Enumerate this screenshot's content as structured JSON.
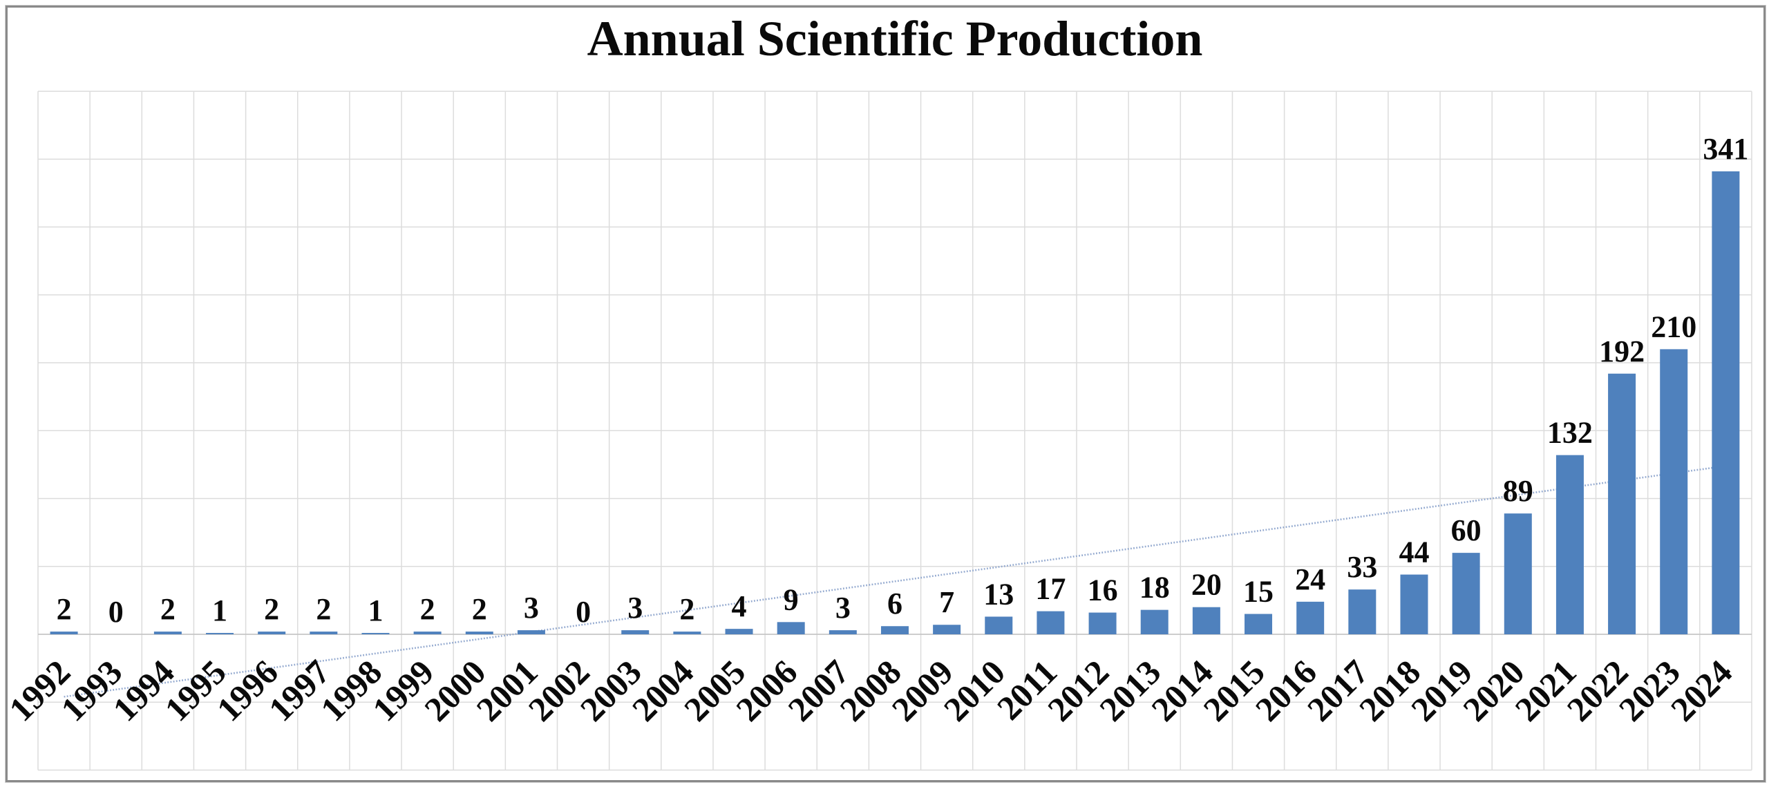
{
  "title": "Annual Scientific Production",
  "chart_data": {
    "type": "bar",
    "title": "Annual Scientific Production",
    "categories": [
      "1992",
      "1993",
      "1994",
      "1995",
      "1996",
      "1997",
      "1998",
      "1999",
      "2000",
      "2001",
      "2002",
      "2003",
      "2004",
      "2005",
      "2006",
      "2007",
      "2008",
      "2009",
      "2010",
      "2011",
      "2012",
      "2013",
      "2014",
      "2015",
      "2016",
      "2017",
      "2018",
      "2019",
      "2020",
      "2021",
      "2022",
      "2023",
      "2024"
    ],
    "values": [
      2,
      0,
      2,
      1,
      2,
      2,
      1,
      2,
      2,
      3,
      0,
      3,
      2,
      4,
      9,
      3,
      6,
      7,
      13,
      17,
      16,
      18,
      20,
      15,
      24,
      33,
      44,
      60,
      89,
      132,
      192,
      210,
      341
    ],
    "xlabel": "",
    "ylabel": "",
    "ylim": [
      -100,
      400
    ],
    "gridline_step": 50,
    "grid": true,
    "legend": false,
    "value_labels_shown": true,
    "bar_color": "#4f81bd",
    "gridline_color": "#dcdcdc",
    "zero_line_color": "#c6c6c6",
    "text_color": "#0a0a0a",
    "frame_color": "#8a8a8a",
    "trendline": {
      "type": "linear",
      "style": "dotted",
      "color": "#93a9cf",
      "start_category": "1992",
      "end_category": "2024",
      "start_value": -46,
      "end_value": 124
    }
  }
}
